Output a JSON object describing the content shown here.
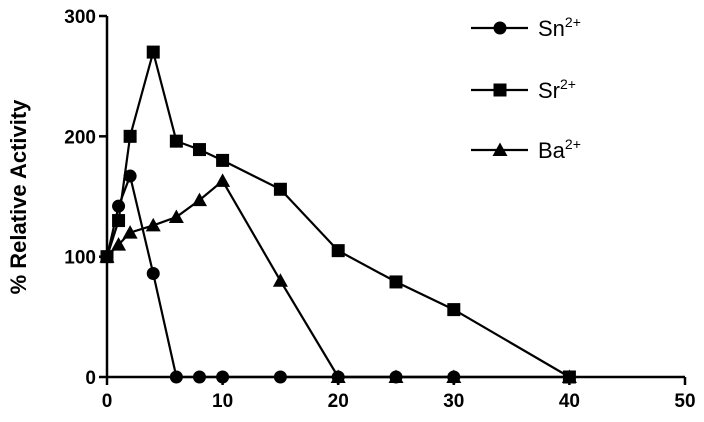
{
  "chart_data": {
    "type": "line",
    "title": "",
    "xlabel": "",
    "ylabel": "% Relative Activity",
    "xlim": [
      0,
      50
    ],
    "ylim": [
      0,
      300
    ],
    "x_ticks": [
      "0",
      "10",
      "20",
      "30",
      "40",
      "50"
    ],
    "y_ticks": [
      "0",
      "100",
      "200",
      "300"
    ],
    "grid": false,
    "legend_position": "top-right",
    "series": [
      {
        "name_base": "Sn",
        "name_sup": "2+",
        "marker": "circle",
        "points": [
          [
            0,
            100
          ],
          [
            1,
            142
          ],
          [
            2,
            167
          ],
          [
            4,
            86
          ],
          [
            6,
            0
          ],
          [
            8,
            0
          ],
          [
            10,
            0
          ],
          [
            15,
            0
          ],
          [
            20,
            0
          ],
          [
            25,
            0
          ],
          [
            30,
            0
          ]
        ]
      },
      {
        "name_base": "Sr",
        "name_sup": "2+",
        "marker": "square",
        "points": [
          [
            0,
            100
          ],
          [
            1,
            130
          ],
          [
            2,
            200
          ],
          [
            4,
            270
          ],
          [
            6,
            196
          ],
          [
            8,
            189
          ],
          [
            10,
            180
          ],
          [
            15,
            156
          ],
          [
            20,
            105
          ],
          [
            25,
            79
          ],
          [
            30,
            56
          ],
          [
            40,
            0
          ]
        ]
      },
      {
        "name_base": "Ba",
        "name_sup": "2+",
        "marker": "triangle",
        "points": [
          [
            0,
            100
          ],
          [
            1,
            110
          ],
          [
            2,
            120
          ],
          [
            4,
            126
          ],
          [
            6,
            133
          ],
          [
            8,
            147
          ],
          [
            10,
            163
          ],
          [
            15,
            80
          ],
          [
            20,
            0
          ],
          [
            25,
            0
          ],
          [
            30,
            0
          ],
          [
            40,
            0
          ]
        ]
      }
    ]
  }
}
